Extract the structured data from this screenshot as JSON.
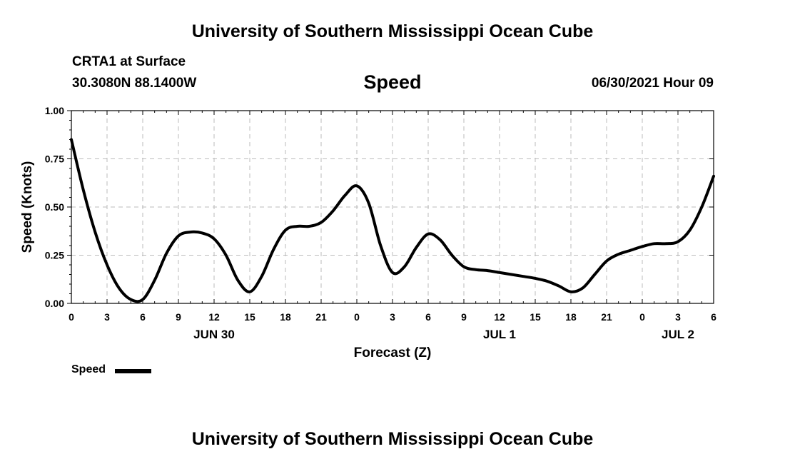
{
  "header": {
    "top_title": "University of Southern Mississippi Ocean Cube",
    "station": "CRTA1 at Surface",
    "coords": "30.3080N  88.1400W",
    "variable": "Speed",
    "datetime": "06/30/2021 Hour 09",
    "bottom_title": "University of Southern Mississippi Ocean Cube"
  },
  "legend": {
    "label": "Speed"
  },
  "chart_data": {
    "type": "line",
    "title": "Speed",
    "xlabel": "Forecast (Z)",
    "ylabel": "Speed (Knots)",
    "ylim": [
      0,
      1
    ],
    "xlim": [
      0,
      54
    ],
    "grid": true,
    "legend_position": "bottom-left",
    "x_ticks": [
      0,
      3,
      6,
      9,
      12,
      15,
      18,
      21,
      24,
      27,
      30,
      33,
      36,
      39,
      42,
      45,
      48,
      51,
      54
    ],
    "x_tick_labels": [
      "0",
      "3",
      "6",
      "9",
      "12",
      "15",
      "18",
      "21",
      "0",
      "3",
      "6",
      "9",
      "12",
      "15",
      "18",
      "21",
      "0",
      "3",
      "6"
    ],
    "y_ticks": [
      0,
      0.25,
      0.5,
      0.75,
      1.0
    ],
    "y_tick_labels": [
      "0.00",
      "0.25",
      "0.50",
      "0.75",
      "1.00"
    ],
    "date_labels": [
      {
        "label": "JUN 30",
        "x": 12
      },
      {
        "label": "JUL 1",
        "x": 36
      },
      {
        "label": "JUL 2",
        "x": 51
      }
    ],
    "series": [
      {
        "name": "Speed",
        "color": "#000000",
        "x": [
          0,
          1,
          2,
          3,
          4,
          5,
          6,
          7,
          8,
          9,
          10,
          11,
          12,
          13,
          14,
          15,
          16,
          17,
          18,
          19,
          20,
          21,
          22,
          23,
          24,
          25,
          26,
          27,
          28,
          29,
          30,
          31,
          32,
          33,
          34,
          35,
          36,
          37,
          38,
          39,
          40,
          41,
          42,
          43,
          44,
          45,
          46,
          47,
          48,
          49,
          50,
          51,
          52,
          53,
          54
        ],
        "values": [
          0.85,
          0.59,
          0.37,
          0.2,
          0.08,
          0.02,
          0.02,
          0.12,
          0.26,
          0.35,
          0.37,
          0.365,
          0.335,
          0.25,
          0.12,
          0.06,
          0.14,
          0.28,
          0.38,
          0.4,
          0.4,
          0.42,
          0.48,
          0.56,
          0.61,
          0.52,
          0.3,
          0.16,
          0.19,
          0.29,
          0.36,
          0.33,
          0.25,
          0.19,
          0.175,
          0.17,
          0.16,
          0.15,
          0.14,
          0.13,
          0.115,
          0.09,
          0.06,
          0.08,
          0.15,
          0.22,
          0.255,
          0.275,
          0.295,
          0.31,
          0.31,
          0.32,
          0.38,
          0.5,
          0.66
        ]
      }
    ]
  }
}
